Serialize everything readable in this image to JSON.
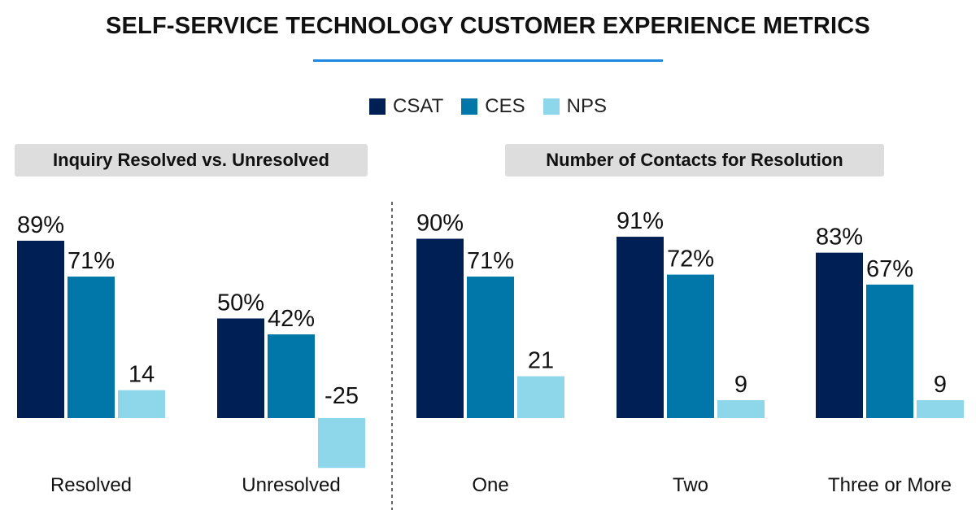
{
  "title": "SELF-SERVICE TECHNOLOGY CUSTOMER EXPERIENCE METRICS",
  "legend": [
    {
      "name": "CSAT",
      "color": "#001f54"
    },
    {
      "name": "CES",
      "color": "#0077a8"
    },
    {
      "name": "NPS",
      "color": "#8ed6ea"
    }
  ],
  "chart_data": [
    {
      "type": "bar",
      "title": "Inquiry Resolved vs. Unresolved",
      "categories": [
        "Resolved",
        "Unresolved"
      ],
      "series": [
        {
          "name": "CSAT",
          "values": [
            89,
            50
          ],
          "labels": [
            "89%",
            "50%"
          ]
        },
        {
          "name": "CES",
          "values": [
            71,
            42
          ],
          "labels": [
            "71%",
            "42%"
          ]
        },
        {
          "name": "NPS",
          "values": [
            14,
            -25
          ],
          "labels": [
            "14",
            "-25"
          ]
        }
      ]
    },
    {
      "type": "bar",
      "title": "Number of Contacts for Resolution",
      "categories": [
        "One",
        "Two",
        "Three or More"
      ],
      "series": [
        {
          "name": "CSAT",
          "values": [
            90,
            91,
            83
          ],
          "labels": [
            "90%",
            "91%",
            "83%"
          ]
        },
        {
          "name": "CES",
          "values": [
            71,
            72,
            67
          ],
          "labels": [
            "71%",
            "72%",
            "67%"
          ]
        },
        {
          "name": "NPS",
          "values": [
            21,
            9,
            9
          ],
          "labels": [
            "21",
            "9",
            "9"
          ]
        }
      ]
    }
  ]
}
